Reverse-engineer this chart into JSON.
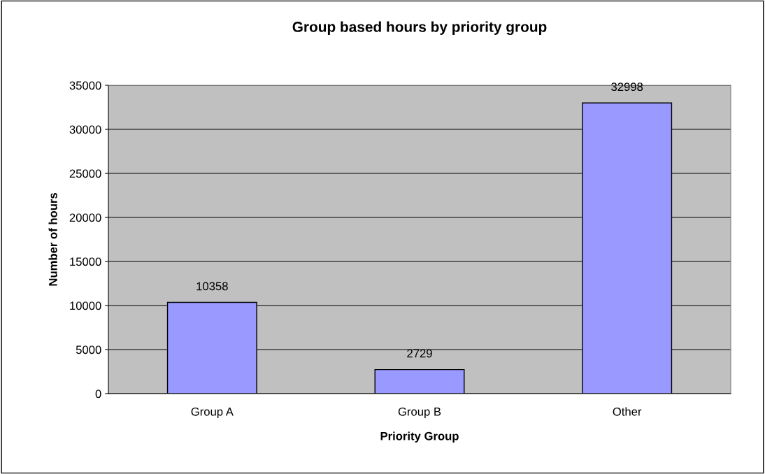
{
  "chart_data": {
    "type": "bar",
    "title": "Group based hours by priority group",
    "xlabel": "Priority Group",
    "ylabel": "Number of hours",
    "categories": [
      "Group A",
      "Group B",
      "Other"
    ],
    "values": [
      10358,
      2729,
      32998
    ],
    "color": "#9999ff",
    "ylim": [
      0,
      35000
    ],
    "yticks": [
      0,
      5000,
      10000,
      15000,
      20000,
      25000,
      30000,
      35000
    ],
    "grid": "y",
    "data_labels": true,
    "legend": false
  }
}
